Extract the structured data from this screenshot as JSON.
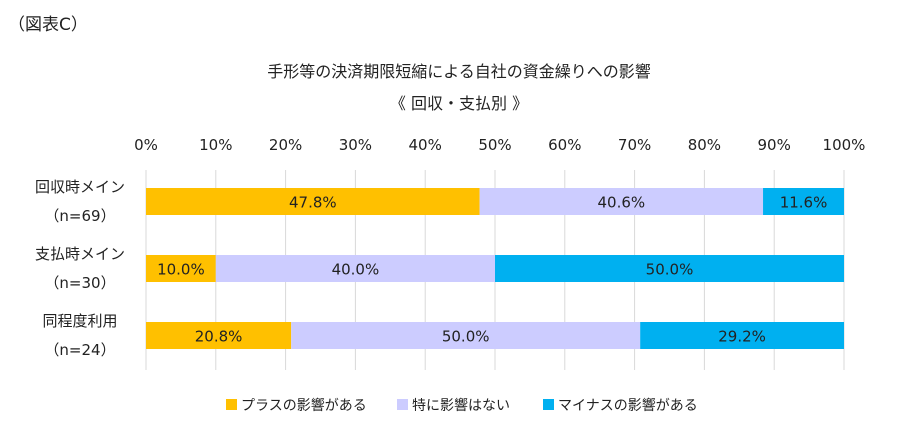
{
  "figure_label": "（図表C）",
  "chart_data": {
    "type": "bar",
    "orientation": "horizontal",
    "stacked": true,
    "title": "手形等の決済期限短縮による自社の資金繰りへの影響",
    "subtitle": "《 回収・支払別 》",
    "categories": [
      {
        "line1": "回収時メイン",
        "line2": "（n=69）"
      },
      {
        "line1": "支払時メイン",
        "line2": "（n=30）"
      },
      {
        "line1": "同程度利用",
        "line2": "（n=24）"
      }
    ],
    "series": [
      {
        "name": "プラスの影響がある",
        "color": "#FFC000",
        "values": [
          47.8,
          10.0,
          20.8
        ],
        "labels": [
          "47.8%",
          "10.0%",
          "20.8%"
        ]
      },
      {
        "name": "特に影響はない",
        "color": "#CCCCFF",
        "values": [
          40.6,
          40.0,
          50.0
        ],
        "labels": [
          "40.6%",
          "40.0%",
          "50.0%"
        ]
      },
      {
        "name": "マイナスの影響がある",
        "color": "#00B0F0",
        "values": [
          11.6,
          50.0,
          29.2
        ],
        "labels": [
          "11.6%",
          "50.0%",
          "29.2%"
        ]
      }
    ],
    "xlim": [
      0,
      100
    ],
    "xticks": [
      "0%",
      "10%",
      "20%",
      "30%",
      "40%",
      "50%",
      "60%",
      "70%",
      "80%",
      "90%",
      "100%"
    ],
    "grid": true,
    "legend_position": "bottom"
  }
}
